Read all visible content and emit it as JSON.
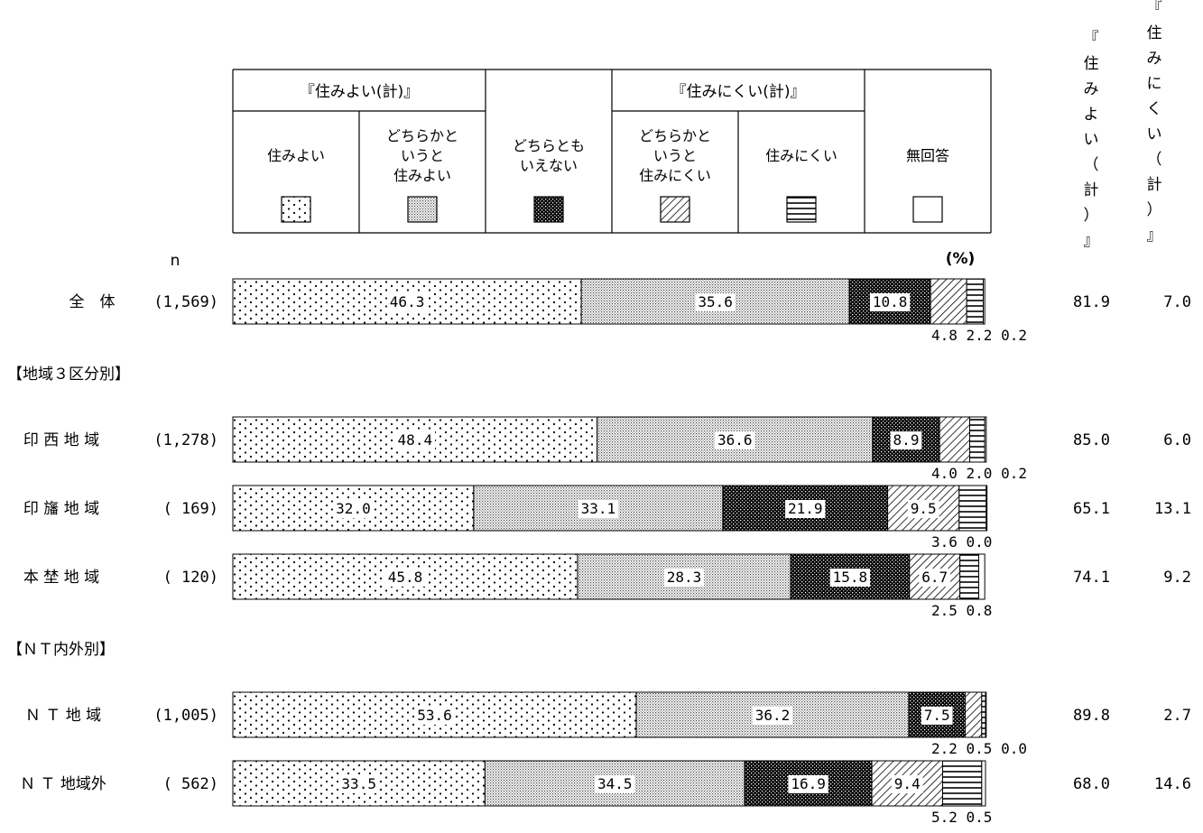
{
  "chart_data": {
    "type": "bar",
    "stacked": true,
    "horizontal": true,
    "unit": "(%)",
    "n_label": "n",
    "group_headers": [
      {
        "label": "『住みよい(計)』"
      },
      {
        "label": "『住みにくい(計)』"
      }
    ],
    "legend": [
      {
        "lines": [
          "住みよい"
        ],
        "pattern": "dots"
      },
      {
        "lines": [
          "どちらかと",
          "いうと",
          "住みよい"
        ],
        "pattern": "fine"
      },
      {
        "lines": [
          "どちらとも",
          "いえない"
        ],
        "pattern": "dark"
      },
      {
        "lines": [
          "どちらかと",
          "いうと",
          "住みにくい"
        ],
        "pattern": "hatch"
      },
      {
        "lines": [
          "住みにくい"
        ],
        "pattern": "hlines"
      },
      {
        "lines": [
          "無回答"
        ],
        "pattern": "blank"
      }
    ],
    "right_headers": [
      {
        "chars": [
          "『",
          "住",
          "み",
          "よ",
          "い",
          "（",
          "計",
          "）",
          "』"
        ]
      },
      {
        "chars": [
          "『",
          "住",
          "み",
          "に",
          "く",
          "い",
          "（",
          "計",
          "）",
          "』"
        ]
      }
    ],
    "sections": [
      {
        "label": "【地域３区分別】"
      },
      {
        "label": "【ＮＴ内外別】"
      }
    ],
    "rows": [
      {
        "label": "全　体",
        "n": "(1,569)",
        "values": [
          46.3,
          35.6,
          10.8,
          4.8,
          2.2,
          0.2
        ],
        "inner": [
          "46.3",
          "35.6",
          "10.8",
          "",
          "",
          ""
        ],
        "below": "4.8 2.2 0.2",
        "good_total": "81.9",
        "bad_total": "7.0"
      },
      {
        "label": "印 西 地 域",
        "n": "(1,278)",
        "values": [
          48.4,
          36.6,
          8.9,
          4.0,
          2.0,
          0.2
        ],
        "inner": [
          "48.4",
          "36.6",
          "8.9",
          "",
          "",
          ""
        ],
        "below": "4.0 2.0 0.2",
        "good_total": "85.0",
        "bad_total": "6.0"
      },
      {
        "label": "印 旛 地 域",
        "n": "(  169)",
        "values": [
          32.0,
          33.1,
          21.9,
          9.5,
          3.6,
          0.0
        ],
        "inner": [
          "32.0",
          "33.1",
          "21.9",
          "9.5",
          "",
          ""
        ],
        "below": "3.6 0.0",
        "good_total": "65.1",
        "bad_total": "13.1"
      },
      {
        "label": "本 埜 地 域",
        "n": "(  120)",
        "values": [
          45.8,
          28.3,
          15.8,
          6.7,
          2.5,
          0.8
        ],
        "inner": [
          "45.8",
          "28.3",
          "15.8",
          "6.7",
          "",
          ""
        ],
        "below": "2.5 0.8",
        "good_total": "74.1",
        "bad_total": "9.2"
      },
      {
        "label": "Ｎ Ｔ 地 域",
        "n": "(1,005)",
        "values": [
          53.6,
          36.2,
          7.5,
          2.2,
          0.5,
          0.0
        ],
        "inner": [
          "53.6",
          "36.2",
          "7.5",
          "",
          "",
          ""
        ],
        "below": "2.2 0.5 0.0",
        "good_total": "89.8",
        "bad_total": "2.7"
      },
      {
        "label": "Ｎ Ｔ 地域外",
        "n": "(  562)",
        "values": [
          33.5,
          34.5,
          16.9,
          9.4,
          5.2,
          0.5
        ],
        "inner": [
          "33.5",
          "34.5",
          "16.9",
          "9.4",
          "",
          ""
        ],
        "below": "5.2 0.5",
        "good_total": "68.0",
        "bad_total": "14.6"
      }
    ]
  }
}
